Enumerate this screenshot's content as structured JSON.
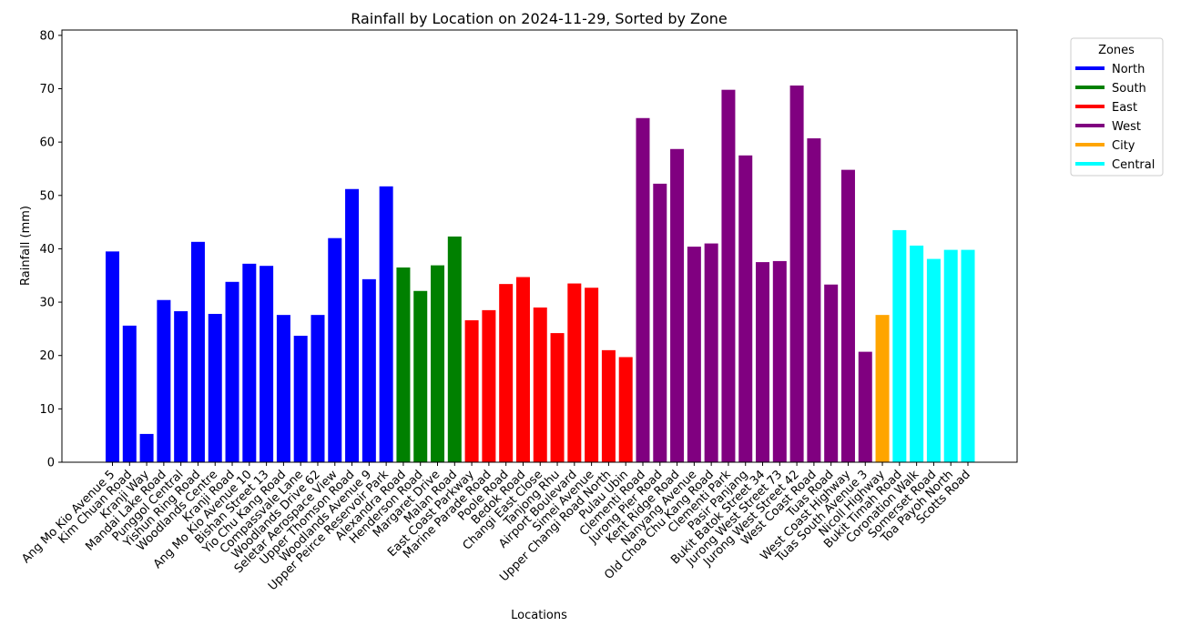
{
  "chart_data": {
    "type": "bar",
    "title": "Rainfall by Location on 2024-11-29, Sorted by Zone",
    "xlabel": "Locations",
    "ylabel": "Rainfall (mm)",
    "ylim": [
      0,
      81
    ],
    "yticks": [
      0,
      10,
      20,
      30,
      40,
      50,
      60,
      70,
      80
    ],
    "grid": false,
    "legend": {
      "title": "Zones",
      "placement": "outside-top-right",
      "entries": [
        {
          "name": "North",
          "color": "#0000ff"
        },
        {
          "name": "South",
          "color": "#008000"
        },
        {
          "name": "East",
          "color": "#ff0000"
        },
        {
          "name": "West",
          "color": "#800080"
        },
        {
          "name": "City",
          "color": "#ffa500"
        },
        {
          "name": "Central",
          "color": "#00ffff"
        }
      ]
    },
    "categories": [
      "Ang Mo Kio Avenue 5",
      "Kim Chuan Road",
      "Kranji Way",
      "Mandai Lake Road",
      "Punggol Central",
      "Yishun Ring Road",
      "Woodlands Centre",
      "Kranji Road",
      "Ang Mo Kio Avenue 10",
      "Bishan Street 13",
      "Yio Chu Kang Road",
      "Compassvale Lane",
      "Woodlands Drive 62",
      "Seletar Aerospace View",
      "Upper Thomson Road",
      "Woodlands Avenue 9",
      "Upper Peirce Reservoir Park",
      "Alexandra Road",
      "Henderson Road",
      "Margaret Drive",
      "Malan Road",
      "East Coast Parkway",
      "Marine Parade Road",
      "Poole Road",
      "Bedok Road",
      "Changi East Close",
      "Tanjong Rhu",
      "Airport Boulevard",
      "Simei Avenue",
      "Upper Changi Road North",
      "Pulau Ubin",
      "Clementi Road",
      "Jurong Pier Road",
      "Kent Ridge Road",
      "Nanyang Avenue",
      "Old Choa Chu Kang Road",
      "Clementi Park",
      "Pasir Panjang",
      "Bukit Batok Street 34",
      "Jurong West Street 73",
      "Jurong West Street 42",
      "West Coast Road",
      "Tuas Road",
      "West Coast Highway",
      "Tuas South Avenue 3",
      "Nicoll Highway",
      "Bukit Timah Road",
      "Coronation Walk",
      "Somerset Road",
      "Toa Payoh North",
      "Scotts Road"
    ],
    "values": [
      39.5,
      25.6,
      5.3,
      30.4,
      28.3,
      41.3,
      27.8,
      33.8,
      37.2,
      36.8,
      27.6,
      23.7,
      27.6,
      42.0,
      51.2,
      34.3,
      51.7,
      36.5,
      32.1,
      36.9,
      42.3,
      26.6,
      28.5,
      33.4,
      34.7,
      29.0,
      24.2,
      33.5,
      32.7,
      21.0,
      19.7,
      64.5,
      52.2,
      58.7,
      40.4,
      41.0,
      69.8,
      57.5,
      37.5,
      37.7,
      70.6,
      60.7,
      33.3,
      54.8,
      20.7,
      27.6,
      43.5,
      40.6,
      38.1,
      39.8,
      39.8
    ],
    "zones": [
      "North",
      "North",
      "North",
      "North",
      "North",
      "North",
      "North",
      "North",
      "North",
      "North",
      "North",
      "North",
      "North",
      "North",
      "North",
      "North",
      "North",
      "South",
      "South",
      "South",
      "South",
      "East",
      "East",
      "East",
      "East",
      "East",
      "East",
      "East",
      "East",
      "East",
      "East",
      "West",
      "West",
      "West",
      "West",
      "West",
      "West",
      "West",
      "West",
      "West",
      "West",
      "West",
      "West",
      "West",
      "West",
      "City",
      "Central",
      "Central",
      "Central",
      "Central",
      "Central"
    ]
  }
}
